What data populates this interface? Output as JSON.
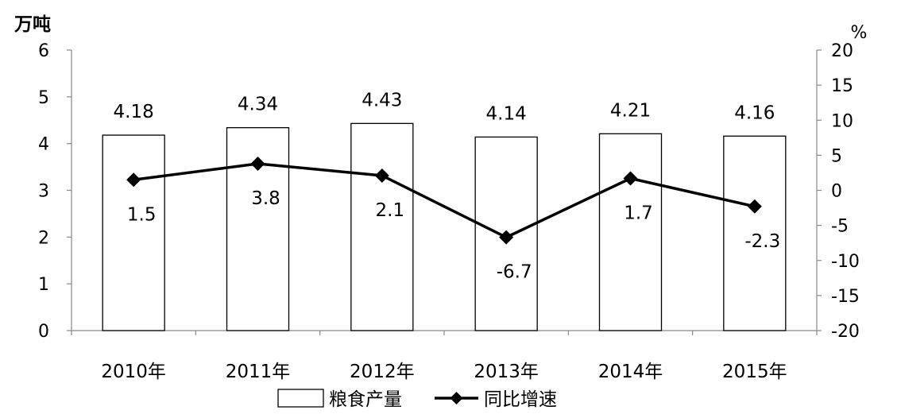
{
  "chart_data": {
    "type": "bar+line",
    "categories": [
      "2010年",
      "2011年",
      "2012年",
      "2013年",
      "2014年",
      "2015年"
    ],
    "series": [
      {
        "name": "粮食产量",
        "type": "bar",
        "axis": "left",
        "values": [
          4.18,
          4.34,
          4.43,
          4.14,
          4.21,
          4.16
        ],
        "labels": [
          "4.18",
          "4.34",
          "4.43",
          "4.14",
          "4.21",
          "4.16"
        ]
      },
      {
        "name": "同比增速",
        "type": "line",
        "axis": "right",
        "marker": "diamond",
        "values": [
          1.5,
          3.8,
          2.1,
          -6.7,
          1.7,
          -2.3
        ],
        "labels": [
          "1.5",
          "3.8",
          "2.1",
          "-6.7",
          "1.7",
          "-2.3"
        ]
      }
    ],
    "y_left": {
      "unit": "万吨",
      "ylim": [
        0,
        6
      ],
      "ticks": [
        "0",
        "1",
        "2",
        "3",
        "4",
        "5",
        "6"
      ]
    },
    "y_right": {
      "unit": "%",
      "ylim": [
        -20,
        20
      ],
      "ticks": [
        "-20",
        "-15",
        "-10",
        "-5",
        "0",
        "5",
        "10",
        "15",
        "20"
      ]
    },
    "grid": false,
    "legend": "bottom",
    "colors": {
      "bar_fill": "#ffffff",
      "bar_stroke": "#000000",
      "line": "#000000"
    }
  }
}
